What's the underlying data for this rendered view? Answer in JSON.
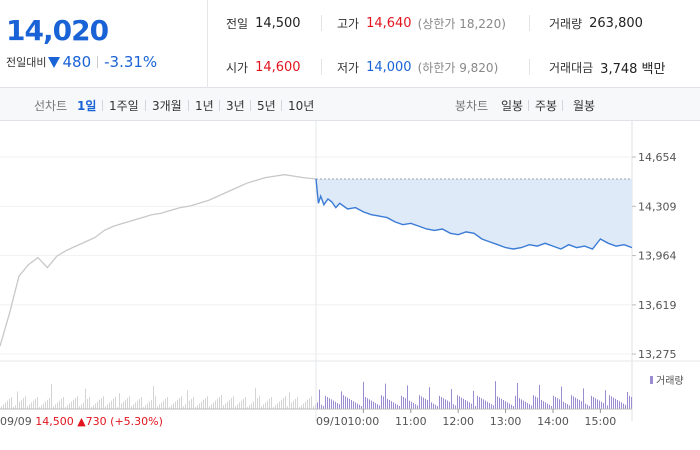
{
  "header": {
    "price": "14,020",
    "change_label": "전일대비",
    "change_value": "480",
    "change_rate": "-3.31%",
    "change_color": "#1a63d6",
    "stats": {
      "prev_close_label": "전일",
      "prev_close": "14,500",
      "high_label": "고가",
      "high": "14,640",
      "upper_limit": "(상한가 18,220)",
      "volume_label": "거래량",
      "volume": "263,800",
      "open_label": "시가",
      "open": "14,600",
      "low_label": "저가",
      "low": "14,000",
      "lower_limit": "(하한가 9,820)",
      "trade_amount_label": "거래대금",
      "trade_amount": "3,748 백만"
    }
  },
  "tabs": {
    "line_chart_label": "선차트",
    "periods": [
      "1일",
      "1주일",
      "3개월",
      "1년",
      "3년",
      "5년",
      "10년"
    ],
    "active_period": "1일",
    "candle_chart_label": "봉차트",
    "candles": [
      "일봉",
      "주봉",
      "월봉"
    ]
  },
  "chart_data": {
    "type": "line",
    "ylim": [
      13200,
      14700
    ],
    "y_ticks": [
      14654,
      14309,
      13964,
      13619,
      13275
    ],
    "y_tick_labels": [
      "14,654",
      "14,309",
      "13,964",
      "13,619",
      "13,275"
    ],
    "prev_day": {
      "date": "09/09",
      "close": "14,500",
      "change": "730",
      "change_rate": "(+5.30%)",
      "color": "#c8c8c8",
      "x": [
        0,
        3,
        6,
        9,
        12,
        15,
        18,
        21,
        24,
        27,
        30,
        33,
        36,
        39,
        42,
        45,
        48,
        51,
        54,
        57,
        60,
        63,
        66,
        69,
        72,
        75,
        78,
        81,
        84,
        87,
        90,
        93,
        96,
        100
      ],
      "values": [
        13330,
        13560,
        13820,
        13900,
        13950,
        13880,
        13960,
        14000,
        14030,
        14060,
        14090,
        14140,
        14170,
        14190,
        14210,
        14230,
        14250,
        14260,
        14280,
        14300,
        14310,
        14330,
        14350,
        14380,
        14410,
        14440,
        14470,
        14490,
        14510,
        14520,
        14530,
        14520,
        14510,
        14500
      ]
    },
    "today": {
      "date": "09/10",
      "color": "#3a7bd5",
      "fill": "#dce8f8",
      "time_labels": [
        "10:00",
        "11:00",
        "12:00",
        "13:00",
        "14:00",
        "15:00"
      ],
      "time_x": [
        60,
        120,
        180,
        240,
        300,
        360
      ],
      "x": [
        0,
        3,
        6,
        10,
        15,
        20,
        25,
        30,
        40,
        50,
        60,
        70,
        80,
        90,
        100,
        110,
        120,
        130,
        140,
        150,
        160,
        170,
        180,
        190,
        200,
        210,
        220,
        230,
        240,
        250,
        260,
        270,
        280,
        290,
        300,
        310,
        320,
        330,
        340,
        350,
        360,
        370,
        380,
        390,
        400
      ],
      "values": [
        14500,
        14330,
        14380,
        14320,
        14360,
        14340,
        14300,
        14330,
        14290,
        14300,
        14270,
        14250,
        14240,
        14230,
        14200,
        14180,
        14190,
        14170,
        14150,
        14140,
        14150,
        14120,
        14110,
        14130,
        14120,
        14080,
        14060,
        14040,
        14020,
        14010,
        14020,
        14040,
        14030,
        14050,
        14030,
        14010,
        14040,
        14020,
        14030,
        14010,
        14080,
        14050,
        14030,
        14040,
        14020
      ]
    },
    "volume_label": "거래량",
    "volume_color": "#9b8bd0"
  }
}
